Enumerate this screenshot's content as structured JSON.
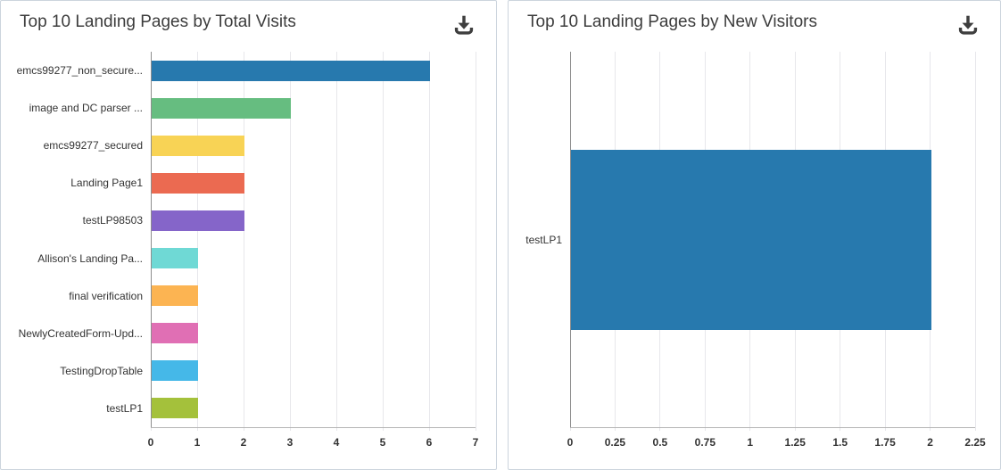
{
  "page": {
    "background": "#ffffff",
    "panel_border": "#ccd4dd",
    "icon_color": "#3e3e3e"
  },
  "panels": [
    {
      "title": "Top 10 Landing Pages by Total Visits",
      "download_icon": "download-icon"
    },
    {
      "title": "Top 10 Landing Pages by New Visitors",
      "download_icon": "download-icon"
    }
  ],
  "chart_data": [
    {
      "type": "bar",
      "orientation": "horizontal",
      "title": "Top 10 Landing Pages by Total Visits",
      "categories": [
        "emcs99277_non_secure...",
        "image and DC parser ...",
        "emcs99277_secured",
        "Landing Page1",
        "testLP98503",
        "Allison's Landing Pa...",
        "final verification",
        "NewlyCreatedForm-Upd...",
        "TestingDropTable",
        "testLP1"
      ],
      "values": [
        6,
        3,
        2,
        2,
        2,
        1,
        1,
        1,
        1,
        1
      ],
      "bar_colors": [
        "#2779ae",
        "#66bd80",
        "#f8d355",
        "#eb6a51",
        "#8565c9",
        "#6fd9d5",
        "#fcb452",
        "#e06fb4",
        "#45b8e8",
        "#a4c13b"
      ],
      "xlabel": "",
      "ylabel": "",
      "xlim": [
        0,
        7
      ],
      "xticks": [
        0,
        1,
        2,
        3,
        4,
        5,
        6,
        7
      ],
      "xtick_labels": [
        "0",
        "1",
        "2",
        "3",
        "4",
        "5",
        "6",
        "7"
      ],
      "grid": true,
      "legend": false
    },
    {
      "type": "bar",
      "orientation": "horizontal",
      "title": "Top 10 Landing Pages by New Visitors",
      "categories": [
        "testLP1"
      ],
      "values": [
        2
      ],
      "bar_colors": [
        "#2779ae"
      ],
      "xlabel": "",
      "ylabel": "",
      "xlim": [
        0,
        2.25
      ],
      "xticks": [
        0,
        0.25,
        0.5,
        0.75,
        1,
        1.25,
        1.5,
        1.75,
        2,
        2.25
      ],
      "xtick_labels": [
        "0",
        "0.25",
        "0.5",
        "0.75",
        "1",
        "1.25",
        "1.5",
        "1.75",
        "2",
        "2.25"
      ],
      "grid": true,
      "legend": false
    }
  ]
}
